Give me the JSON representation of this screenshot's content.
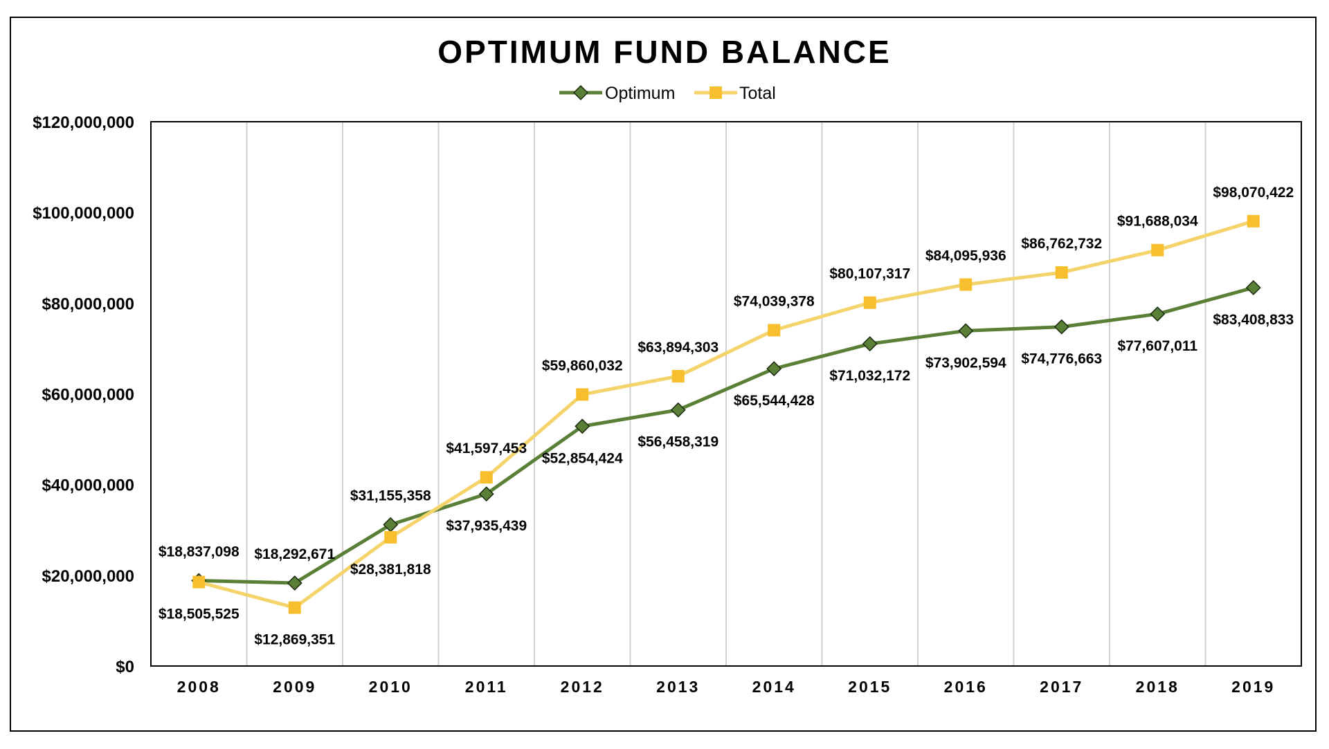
{
  "chart_data": {
    "type": "line",
    "title": "OPTIMUM FUND BALANCE",
    "xlabel": "",
    "ylabel": "",
    "categories": [
      "2008",
      "2009",
      "2010",
      "2011",
      "2012",
      "2013",
      "2014",
      "2015",
      "2016",
      "2017",
      "2018",
      "2019"
    ],
    "ylim": [
      0,
      120000000
    ],
    "yticks": [
      0,
      20000000,
      40000000,
      60000000,
      80000000,
      100000000,
      120000000
    ],
    "ytick_labels": [
      "$0",
      "$20,000,000",
      "$40,000,000",
      "$60,000,000",
      "$80,000,000",
      "$100,000,000",
      "$120,000,000"
    ],
    "grid": "vertical",
    "legend_position": "top",
    "series": [
      {
        "name": "Optimum",
        "color": "#5a7f36",
        "marker": "diamond",
        "marker_fill": "#5a7f36",
        "values": [
          18837098,
          18292671,
          31155358,
          37935439,
          52854424,
          56458319,
          65544428,
          71032172,
          73902594,
          74776663,
          77607011,
          83408833
        ],
        "labels": [
          "$18,837,098",
          "$18,292,671",
          "$31,155,358",
          "$37,935,439",
          "$52,854,424",
          "$56,458,319",
          "$65,544,428",
          "$71,032,172",
          "$73,902,594",
          "$74,776,663",
          "$77,607,011",
          "$83,408,833"
        ],
        "label_side": [
          "above",
          "above",
          "above",
          "below",
          "below",
          "below",
          "below",
          "below",
          "below",
          "below",
          "below",
          "below"
        ]
      },
      {
        "name": "Total",
        "color": "#f5d36b",
        "marker": "square",
        "marker_fill": "#f7bf2e",
        "values": [
          18505525,
          12869351,
          28381818,
          41597453,
          59860032,
          63894303,
          74039378,
          80107317,
          84095936,
          86762732,
          91688034,
          98070422
        ],
        "labels": [
          "$18,505,525",
          "$12,869,351",
          "$28,381,818",
          "$41,597,453",
          "$59,860,032",
          "$63,894,303",
          "$74,039,378",
          "$80,107,317",
          "$84,095,936",
          "$86,762,732",
          "$91,688,034",
          "$98,070,422"
        ],
        "label_side": [
          "below",
          "below",
          "below",
          "above",
          "above",
          "above",
          "above",
          "above",
          "above",
          "above",
          "above",
          "above"
        ]
      }
    ]
  }
}
